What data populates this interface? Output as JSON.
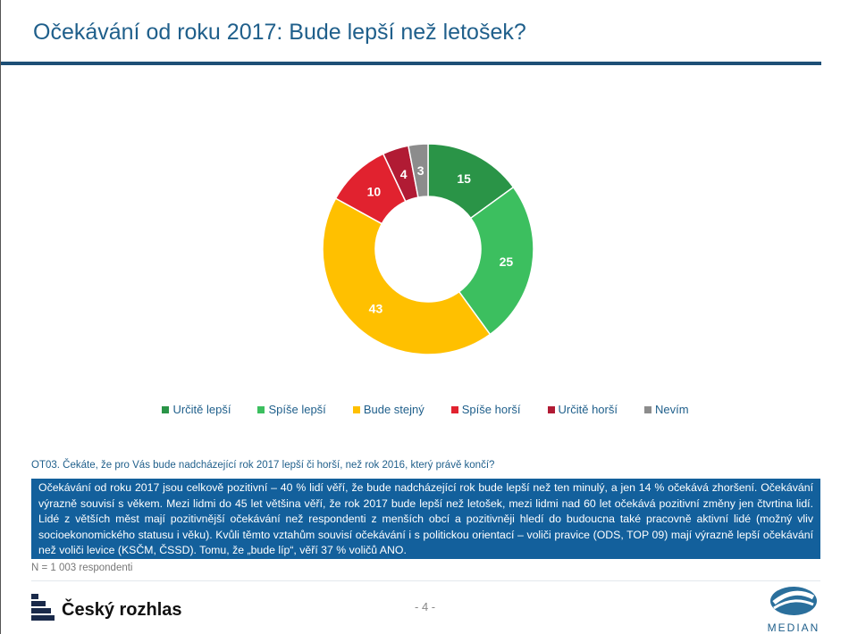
{
  "header": {
    "title": "Očekávání od roku 2017: Bude lepší než letošek?"
  },
  "chart_data": {
    "type": "pie",
    "donut": true,
    "categories": [
      "Určitě lepší",
      "Spíše lepší",
      "Bude stejný",
      "Spíše horší",
      "Určitě horší",
      "Nevím"
    ],
    "values": [
      15,
      25,
      43,
      10,
      4,
      3
    ],
    "labels": [
      "15",
      "25",
      "43",
      "10",
      "4",
      "3"
    ],
    "colors": [
      "#2a9447",
      "#3cbf5f",
      "#ffc000",
      "#e1222f",
      "#b11b34",
      "#8c8c8c"
    ],
    "legend_position": "bottom"
  },
  "question": "OT03. Čekáte, že pro Vás bude nadcházející rok 2017 lepší či horší, než rok 2016, který právě končí?",
  "summary": "Očekávání od roku 2017 jsou celkově pozitivní – 40 % lidí věří, že bude nadcházející rok bude lepší než ten minulý, a jen 14 % očekává zhoršení. Očekávání výrazně souvisí s věkem. Mezi lidmi do 45 let většina věří, že rok 2017 bude lepší než letošek, mezi lidmi nad 60 let očekává pozitivní změny jen čtvrtina lidí. Lidé z větších měst mají pozitivnější očekávání než respondenti z menších obcí a pozitivněji hledí do budoucna také pracovně aktivní lidé (možný vliv socioekonomického statusu i věku). Kvůli těmto vztahům souvisí očekávání i s politickou orientací – voliči pravice (ODS, TOP 09) mají výrazně lepší očekávání než voliči levice (KSČM, ČSSD). Tomu, že „bude líp“, věří 37 % voličů ANO.",
  "sample": "N = 1 003 respondenti",
  "footer": {
    "page": "- 4 -",
    "logo_left": "Český rozhlas",
    "logo_right": "MEDIAN"
  }
}
